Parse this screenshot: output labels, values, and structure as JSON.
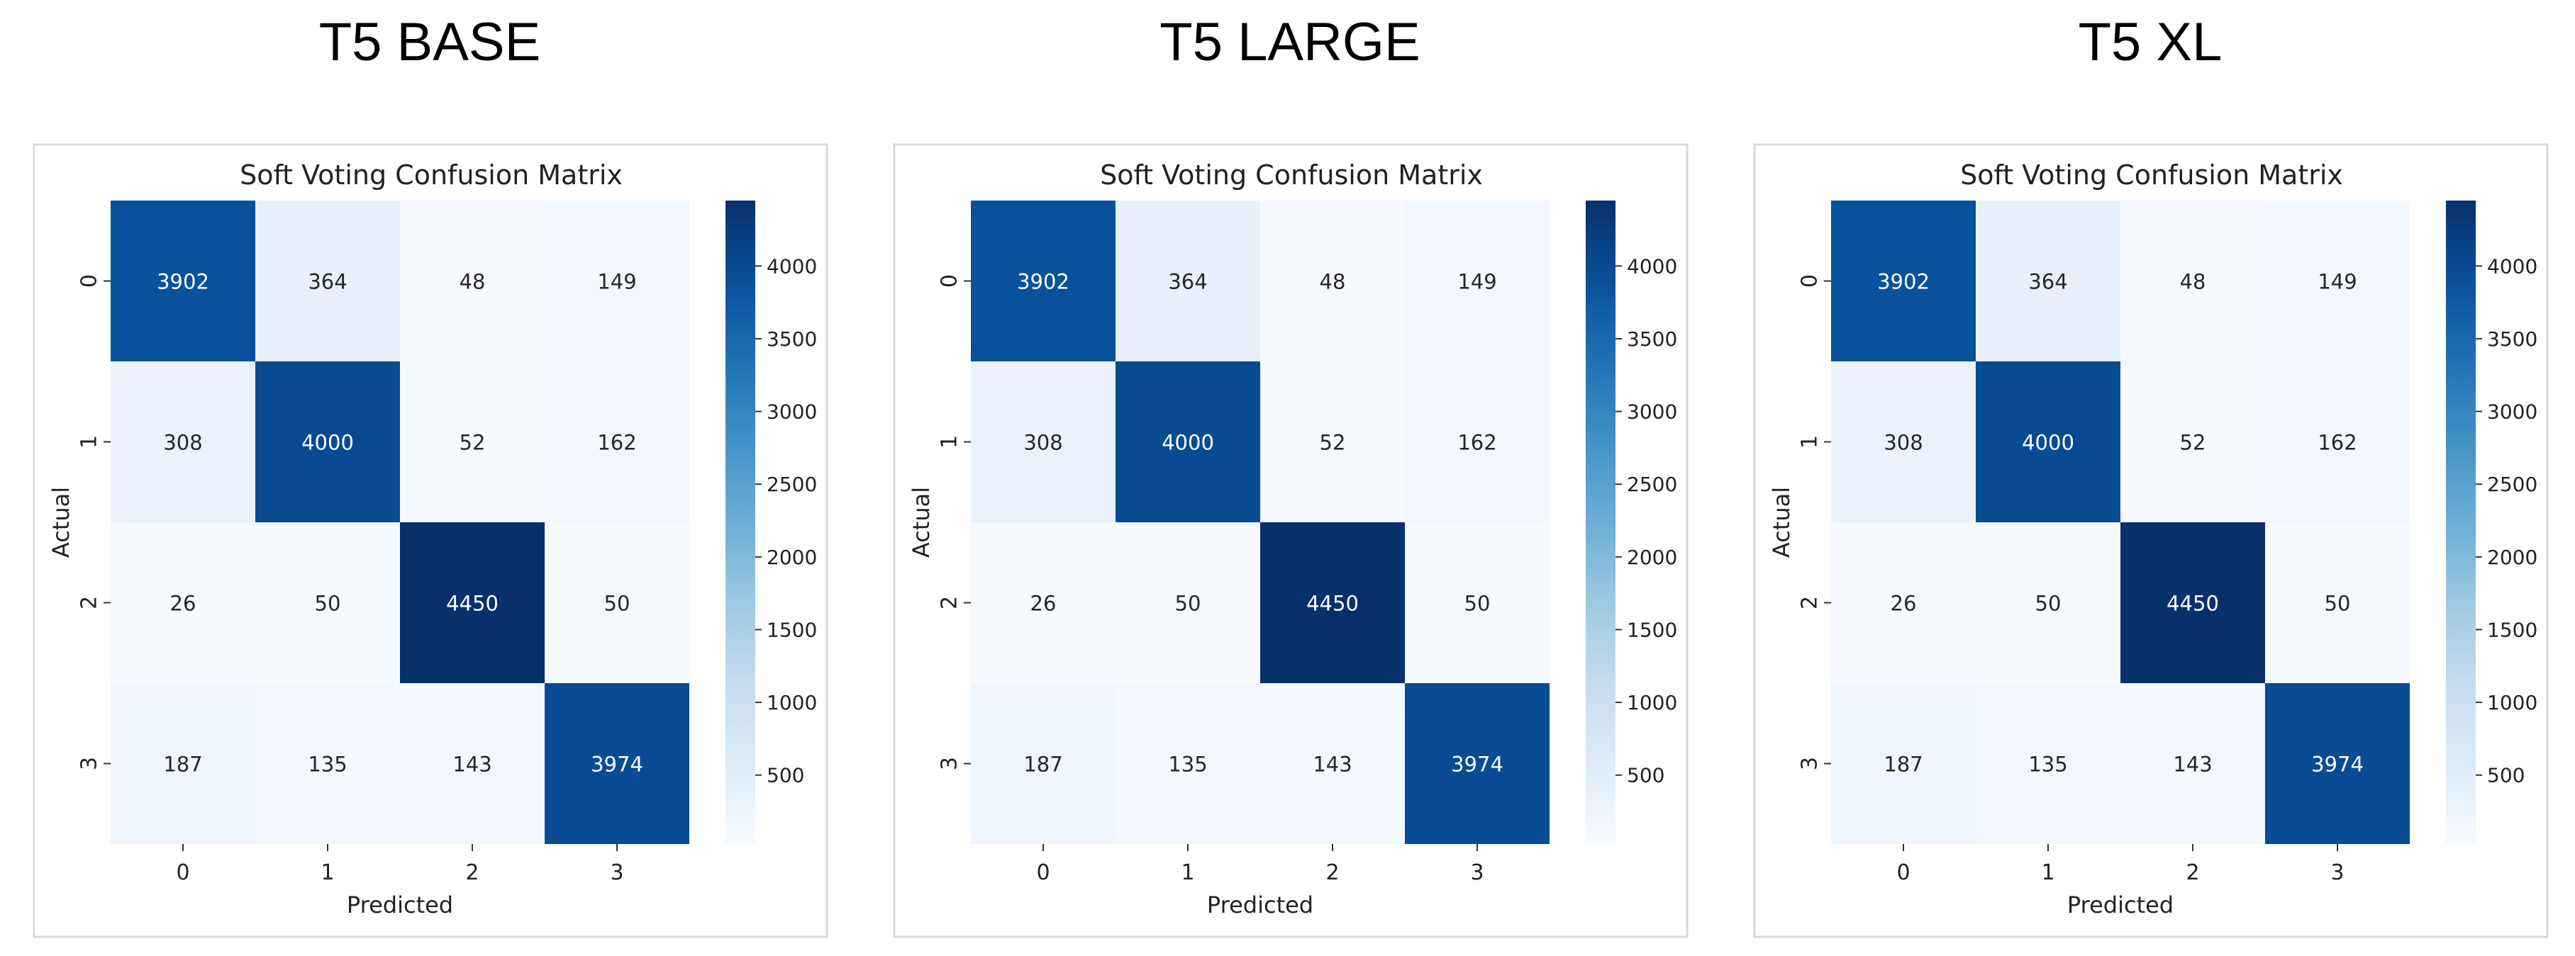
{
  "panels": [
    {
      "heading": "T5 BASE"
    },
    {
      "heading": "T5 LARGE"
    },
    {
      "heading": "T5 XL"
    }
  ],
  "chart_data": [
    {
      "type": "heatmap",
      "title": "Soft Voting Confusion Matrix",
      "xlabel": "Predicted",
      "ylabel": "Actual",
      "x_categories": [
        "0",
        "1",
        "2",
        "3"
      ],
      "y_categories": [
        "0",
        "1",
        "2",
        "3"
      ],
      "values": [
        [
          3902,
          364,
          48,
          149
        ],
        [
          308,
          4000,
          52,
          162
        ],
        [
          26,
          50,
          4450,
          50
        ],
        [
          187,
          135,
          143,
          3974
        ]
      ],
      "colorbar": {
        "cmap": "Blues",
        "range": [
          26,
          4450
        ],
        "ticks": [
          500,
          1000,
          1500,
          2000,
          2500,
          3000,
          3500,
          4000
        ]
      }
    },
    {
      "type": "heatmap",
      "title": "Soft Voting Confusion Matrix",
      "xlabel": "Predicted",
      "ylabel": "Actual",
      "x_categories": [
        "0",
        "1",
        "2",
        "3"
      ],
      "y_categories": [
        "0",
        "1",
        "2",
        "3"
      ],
      "values": [
        [
          3902,
          364,
          48,
          149
        ],
        [
          308,
          4000,
          52,
          162
        ],
        [
          26,
          50,
          4450,
          50
        ],
        [
          187,
          135,
          143,
          3974
        ]
      ],
      "colorbar": {
        "cmap": "Blues",
        "range": [
          26,
          4450
        ],
        "ticks": [
          500,
          1000,
          1500,
          2000,
          2500,
          3000,
          3500,
          4000
        ]
      }
    },
    {
      "type": "heatmap",
      "title": "Soft Voting Confusion Matrix",
      "xlabel": "Predicted",
      "ylabel": "Actual",
      "x_categories": [
        "0",
        "1",
        "2",
        "3"
      ],
      "y_categories": [
        "0",
        "1",
        "2",
        "3"
      ],
      "values": [
        [
          3902,
          364,
          48,
          149
        ],
        [
          308,
          4000,
          52,
          162
        ],
        [
          26,
          50,
          4450,
          50
        ],
        [
          187,
          135,
          143,
          3974
        ]
      ],
      "colorbar": {
        "cmap": "Blues",
        "range": [
          26,
          4450
        ],
        "ticks": [
          500,
          1000,
          1500,
          2000,
          2500,
          3000,
          3500,
          4000
        ]
      }
    }
  ]
}
